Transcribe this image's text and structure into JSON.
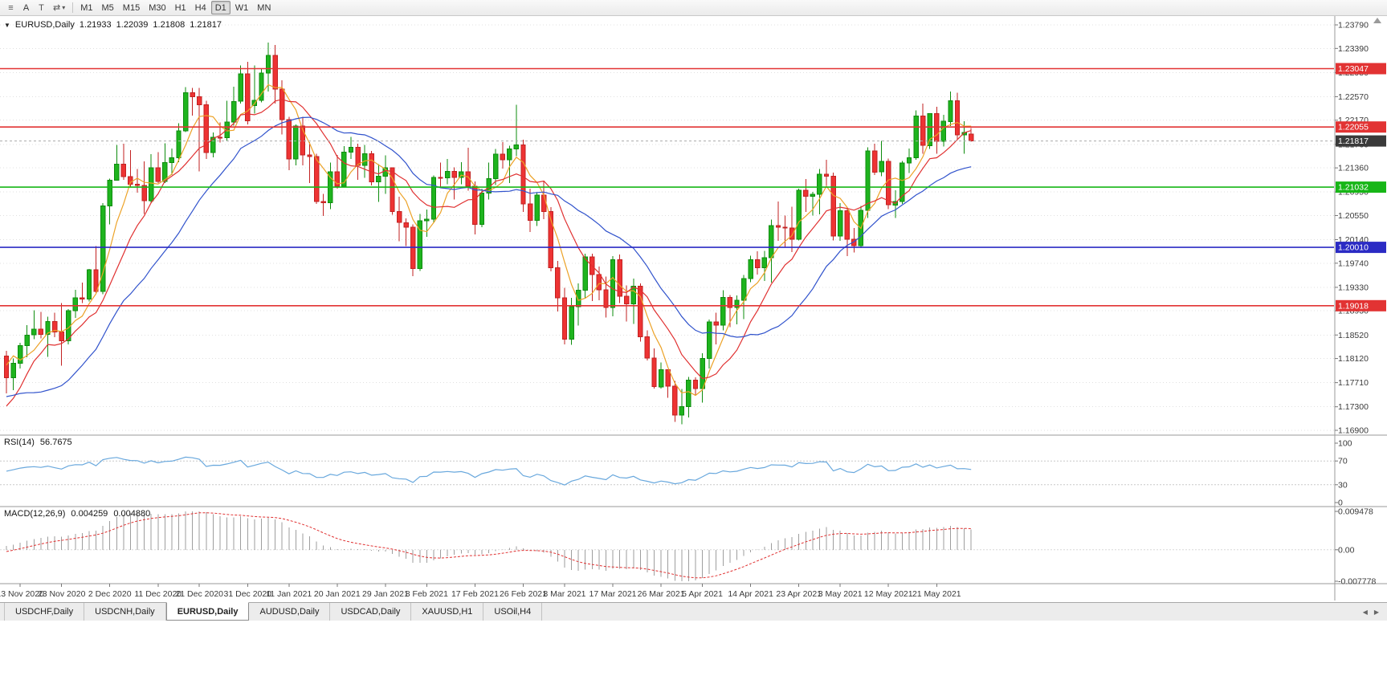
{
  "toolbar": {
    "icons": {
      "menu": "≡",
      "text_tool": "T",
      "draw_tool": "⇄",
      "caret": "▾"
    },
    "cursor_button_label": "A",
    "timeframes": [
      {
        "label": "M1",
        "active": false
      },
      {
        "label": "M5",
        "active": false
      },
      {
        "label": "M15",
        "active": false
      },
      {
        "label": "M30",
        "active": false
      },
      {
        "label": "H1",
        "active": false
      },
      {
        "label": "H4",
        "active": false
      },
      {
        "label": "D1",
        "active": true
      },
      {
        "label": "W1",
        "active": false
      },
      {
        "label": "MN",
        "active": false
      }
    ]
  },
  "chart_header": {
    "collapse_icon": "▼",
    "symbol": "EURUSD,Daily",
    "open": "1.21933",
    "high": "1.22039",
    "low": "1.21808",
    "close": "1.21817"
  },
  "tabbar": {
    "scroll_left_icon": "◀",
    "scroll_right_icon": "▶",
    "tabs": [
      {
        "label": "USDCHF,Daily",
        "active": false
      },
      {
        "label": "USDCNH,Daily",
        "active": false
      },
      {
        "label": "EURUSD,Daily",
        "active": true
      },
      {
        "label": "AUDUSD,Daily",
        "active": false
      },
      {
        "label": "USDCAD,Daily",
        "active": false
      },
      {
        "label": "XAUUSD,H1",
        "active": false
      },
      {
        "label": "USOil,H4",
        "active": false
      }
    ]
  },
  "chart_data": {
    "type": "candlestick",
    "symbol": "EURUSD",
    "timeframe": "Daily",
    "candle_colors": {
      "bull": "#1eb41e",
      "bull_border": "#0e8c0e",
      "bear": "#ee3333",
      "bear_border": "#c22222"
    },
    "grid_color": "#e0e0e0",
    "y_axis": {
      "top_value": 1.2379,
      "bottom_value": 1.169,
      "ticks": [
        "1.23790",
        "1.23390",
        "1.22980",
        "1.22570",
        "1.22170",
        "1.21760",
        "1.21360",
        "1.20950",
        "1.20550",
        "1.20140",
        "1.19740",
        "1.19330",
        "1.18930",
        "1.18520",
        "1.18120",
        "1.17710",
        "1.17300",
        "1.16900"
      ]
    },
    "hlines": [
      {
        "value": 1.23047,
        "label": "1.23047",
        "color": "#e23333"
      },
      {
        "value": 1.22055,
        "label": "1.22055",
        "color": "#e23333"
      },
      {
        "value": 1.21032,
        "label": "1.21032",
        "color": "#17b617"
      },
      {
        "value": 1.2001,
        "label": "1.20010",
        "color": "#2b2bc4"
      },
      {
        "value": 1.19018,
        "label": "1.19018",
        "color": "#e23333"
      }
    ],
    "current_price": {
      "value": 1.21817,
      "label": "1.21817",
      "color": "#3a3a3a"
    },
    "moving_averages": [
      {
        "period": 5,
        "color": "#eca227"
      },
      {
        "period": 10,
        "color": "#e03030"
      },
      {
        "period": 21,
        "color": "#3153cc"
      }
    ],
    "rsi": {
      "name": "RSI(14)",
      "value": "56.7675",
      "period": 14,
      "color": "#69a8dd",
      "levels": [
        {
          "v": 100,
          "label": "100"
        },
        {
          "v": 70,
          "label": "70"
        },
        {
          "v": 30,
          "label": "30"
        },
        {
          "v": 0,
          "label": "0"
        }
      ]
    },
    "macd": {
      "name": "MACD(12,26,9)",
      "main_value": "0.004259",
      "signal_value": "0.004880",
      "fast": 12,
      "slow": 26,
      "signal": 9,
      "hist_color": "#9e9e9e",
      "signal_color": "#e03030",
      "scale": {
        "max": 0.009478,
        "max_label": "0.009478",
        "zero_label": "0.00",
        "min": -0.007778,
        "min_label": "-0.007778"
      }
    },
    "x_labels": [
      {
        "label": "13 Nov 2020",
        "i": 2
      },
      {
        "label": "23 Nov 2020",
        "i": 8
      },
      {
        "label": "2 Dec 2020",
        "i": 15
      },
      {
        "label": "11 Dec 2020",
        "i": 22
      },
      {
        "label": "21 Dec 2020",
        "i": 28
      },
      {
        "label": "31 Dec 2020",
        "i": 35
      },
      {
        "label": "11 Jan 2021",
        "i": 41
      },
      {
        "label": "20 Jan 2021",
        "i": 48
      },
      {
        "label": "29 Jan 2021",
        "i": 55
      },
      {
        "label": "8 Feb 2021",
        "i": 61
      },
      {
        "label": "17 Feb 2021",
        "i": 68
      },
      {
        "label": "26 Feb 2021",
        "i": 75
      },
      {
        "label": "8 Mar 2021",
        "i": 81
      },
      {
        "label": "17 Mar 2021",
        "i": 88
      },
      {
        "label": "26 Mar 2021",
        "i": 95
      },
      {
        "label": "5 Apr 2021",
        "i": 101
      },
      {
        "label": "14 Apr 2021",
        "i": 108
      },
      {
        "label": "23 Apr 2021",
        "i": 115
      },
      {
        "label": "3 May 2021",
        "i": 121
      },
      {
        "label": "12 May 2021",
        "i": 128
      },
      {
        "label": "21 May 2021",
        "i": 135
      }
    ],
    "warmup_closes": [
      1.1788,
      1.1755,
      1.1737,
      1.1716,
      1.1686,
      1.1663,
      1.1631,
      1.1663,
      1.1672,
      1.172,
      1.174,
      1.1717,
      1.1745,
      1.176,
      1.1785,
      1.181,
      1.1771,
      1.1747,
      1.1722,
      1.1714,
      1.174,
      1.1756,
      1.1771,
      1.1824,
      1.186,
      1.183,
      1.181,
      1.1787,
      1.1752,
      1.1698,
      1.1648,
      1.1645,
      1.1672,
      1.1649,
      1.1622,
      1.1646,
      1.1719,
      1.1725,
      1.187,
      1.1813,
      1.1817
    ],
    "ohlc": [
      [
        1.1816,
        1.1825,
        1.1753,
        1.1779
      ],
      [
        1.1779,
        1.1812,
        1.1758,
        1.1804
      ],
      [
        1.1804,
        1.1839,
        1.1795,
        1.1834
      ],
      [
        1.1834,
        1.1869,
        1.1814,
        1.1852
      ],
      [
        1.1852,
        1.1894,
        1.1845,
        1.1862
      ],
      [
        1.1862,
        1.1891,
        1.1846,
        1.1853
      ],
      [
        1.1853,
        1.1883,
        1.1815,
        1.1875
      ],
      [
        1.1875,
        1.189,
        1.1848,
        1.1857
      ],
      [
        1.1857,
        1.1906,
        1.18,
        1.1842
      ],
      [
        1.1842,
        1.1896,
        1.1836,
        1.1893
      ],
      [
        1.1893,
        1.1929,
        1.1881,
        1.1915
      ],
      [
        1.1915,
        1.1941,
        1.1906,
        1.1913
      ],
      [
        1.1913,
        1.1964,
        1.1909,
        1.1963
      ],
      [
        1.1963,
        1.2003,
        1.1923,
        1.1926
      ],
      [
        1.1926,
        1.2076,
        1.1921,
        1.2071
      ],
      [
        1.2071,
        1.2118,
        1.204,
        1.2115
      ],
      [
        1.2115,
        1.2175,
        1.2114,
        1.2142
      ],
      [
        1.2142,
        1.2177,
        1.2116,
        1.2121
      ],
      [
        1.2121,
        1.2166,
        1.2104,
        1.2108
      ],
      [
        1.2108,
        1.2134,
        1.2094,
        1.2106
      ],
      [
        1.2106,
        1.2147,
        1.2058,
        1.208
      ],
      [
        1.208,
        1.2159,
        1.2076,
        1.2136
      ],
      [
        1.2136,
        1.2163,
        1.211,
        1.2113
      ],
      [
        1.2113,
        1.2178,
        1.211,
        1.2145
      ],
      [
        1.2145,
        1.2169,
        1.2124,
        1.2153
      ],
      [
        1.2153,
        1.2212,
        1.2146,
        1.2199
      ],
      [
        1.2199,
        1.2273,
        1.2197,
        1.2264
      ],
      [
        1.2264,
        1.2272,
        1.2225,
        1.2257
      ],
      [
        1.2257,
        1.2272,
        1.213,
        1.2243
      ],
      [
        1.2243,
        1.225,
        1.2151,
        1.2162
      ],
      [
        1.2162,
        1.2196,
        1.2154,
        1.2188
      ],
      [
        1.2188,
        1.2213,
        1.2179,
        1.2187
      ],
      [
        1.2187,
        1.225,
        1.2181,
        1.2214
      ],
      [
        1.2214,
        1.2274,
        1.2208,
        1.2249
      ],
      [
        1.2249,
        1.231,
        1.2245,
        1.2296
      ],
      [
        1.2296,
        1.2316,
        1.221,
        1.2216
      ],
      [
        1.2242,
        1.231,
        1.2228,
        1.2251
      ],
      [
        1.2251,
        1.2304,
        1.2247,
        1.2297
      ],
      [
        1.2297,
        1.2349,
        1.2266,
        1.2327
      ],
      [
        1.2327,
        1.2345,
        1.2245,
        1.227
      ],
      [
        1.227,
        1.2285,
        1.2193,
        1.2218
      ],
      [
        1.2218,
        1.2223,
        1.2132,
        1.2151
      ],
      [
        1.2151,
        1.221,
        1.214,
        1.2207
      ],
      [
        1.2207,
        1.2223,
        1.214,
        1.2158
      ],
      [
        1.2158,
        1.218,
        1.211,
        1.2155
      ],
      [
        1.2155,
        1.216,
        1.2075,
        1.2079
      ],
      [
        1.2079,
        1.2092,
        1.2054,
        1.2077
      ],
      [
        1.2077,
        1.2145,
        1.2066,
        1.2129
      ],
      [
        1.2129,
        1.2158,
        1.2101,
        1.2105
      ],
      [
        1.2105,
        1.2173,
        1.2103,
        1.2163
      ],
      [
        1.2163,
        1.2189,
        1.2151,
        1.2171
      ],
      [
        1.2171,
        1.2177,
        1.2116,
        1.214
      ],
      [
        1.214,
        1.2175,
        1.2119,
        1.216
      ],
      [
        1.216,
        1.2165,
        1.2106,
        1.2112
      ],
      [
        1.2112,
        1.2142,
        1.2078,
        1.2122
      ],
      [
        1.2122,
        1.2157,
        1.2092,
        1.2136
      ],
      [
        1.2136,
        1.2137,
        1.2056,
        1.2062
      ],
      [
        1.2062,
        1.2087,
        1.2011,
        1.2043
      ],
      [
        1.2043,
        1.205,
        1.2003,
        1.2035
      ],
      [
        1.2035,
        1.204,
        1.1952,
        1.1965
      ],
      [
        1.1965,
        1.2058,
        1.1961,
        1.2046
      ],
      [
        1.2046,
        1.2065,
        1.2019,
        1.2049
      ],
      [
        1.2049,
        1.2123,
        1.2042,
        1.212
      ],
      [
        1.212,
        1.2145,
        1.2103,
        1.2119
      ],
      [
        1.2119,
        1.2151,
        1.2108,
        1.213
      ],
      [
        1.213,
        1.2137,
        1.2082,
        1.212
      ],
      [
        1.212,
        1.2146,
        1.2108,
        1.2129
      ],
      [
        1.2129,
        1.217,
        1.2097,
        1.2105
      ],
      [
        1.2105,
        1.2113,
        1.2023,
        1.204
      ],
      [
        1.204,
        1.2101,
        1.2035,
        1.2093
      ],
      [
        1.2093,
        1.2145,
        1.2082,
        1.2118
      ],
      [
        1.2118,
        1.2168,
        1.2107,
        1.2159
      ],
      [
        1.2159,
        1.218,
        1.2135,
        1.215
      ],
      [
        1.215,
        1.2174,
        1.211,
        1.2168
      ],
      [
        1.2168,
        1.2243,
        1.2156,
        1.2175
      ],
      [
        1.2175,
        1.2184,
        1.2061,
        1.2075
      ],
      [
        1.2075,
        1.2101,
        1.2027,
        1.2047
      ],
      [
        1.2047,
        1.2094,
        1.2037,
        1.209
      ],
      [
        1.209,
        1.2113,
        1.2049,
        1.2062
      ],
      [
        1.2062,
        1.2069,
        1.196,
        1.1966
      ],
      [
        1.1966,
        1.1978,
        1.1892,
        1.1915
      ],
      [
        1.1915,
        1.1932,
        1.1836,
        1.1845
      ],
      [
        1.1845,
        1.1915,
        1.1835,
        1.19
      ],
      [
        1.19,
        1.194,
        1.1868,
        1.1928
      ],
      [
        1.1928,
        1.199,
        1.1915,
        1.1985
      ],
      [
        1.1985,
        1.199,
        1.191,
        1.1955
      ],
      [
        1.1955,
        1.1968,
        1.1911,
        1.1929
      ],
      [
        1.1929,
        1.1951,
        1.1882,
        1.1899
      ],
      [
        1.1899,
        1.1986,
        1.1884,
        1.198
      ],
      [
        1.198,
        1.1989,
        1.1906,
        1.1918
      ],
      [
        1.1918,
        1.1936,
        1.1875,
        1.1905
      ],
      [
        1.1905,
        1.1948,
        1.1871,
        1.1935
      ],
      [
        1.1935,
        1.194,
        1.1841,
        1.1849
      ],
      [
        1.1849,
        1.186,
        1.1809,
        1.1813
      ],
      [
        1.1813,
        1.1829,
        1.1761,
        1.1764
      ],
      [
        1.1764,
        1.1805,
        1.1761,
        1.1793
      ],
      [
        1.1793,
        1.1794,
        1.1745,
        1.1765
      ],
      [
        1.1765,
        1.1774,
        1.1704,
        1.1716
      ],
      [
        1.1716,
        1.176,
        1.17,
        1.173
      ],
      [
        1.173,
        1.1781,
        1.1712,
        1.1775
      ],
      [
        1.1775,
        1.178,
        1.1749,
        1.1761
      ],
      [
        1.1761,
        1.1821,
        1.1737,
        1.1812
      ],
      [
        1.1812,
        1.1878,
        1.1795,
        1.1874
      ],
      [
        1.1874,
        1.189,
        1.1836,
        1.1869
      ],
      [
        1.1869,
        1.1928,
        1.186,
        1.1916
      ],
      [
        1.1916,
        1.192,
        1.1865,
        1.1899
      ],
      [
        1.1899,
        1.1919,
        1.187,
        1.1911
      ],
      [
        1.1911,
        1.1954,
        1.1879,
        1.1948
      ],
      [
        1.1948,
        1.1987,
        1.1942,
        1.198
      ],
      [
        1.198,
        1.1994,
        1.1955,
        1.1966
      ],
      [
        1.1966,
        1.1995,
        1.1944,
        1.1983
      ],
      [
        1.1983,
        1.2048,
        1.1941,
        1.2038
      ],
      [
        1.2038,
        1.2079,
        1.2012,
        1.2035
      ],
      [
        1.2035,
        1.2055,
        1.2001,
        1.2034
      ],
      [
        1.2034,
        1.207,
        1.1993,
        1.2015
      ],
      [
        1.2015,
        1.2101,
        1.2013,
        1.2098
      ],
      [
        1.2098,
        1.2117,
        1.2061,
        1.2088
      ],
      [
        1.2088,
        1.2095,
        1.2055,
        1.2091
      ],
      [
        1.2091,
        1.2134,
        1.2057,
        1.2125
      ],
      [
        1.2125,
        1.215,
        1.2103,
        1.2122
      ],
      [
        1.2122,
        1.2128,
        1.2013,
        1.202
      ],
      [
        1.202,
        1.2076,
        1.2012,
        1.2063
      ],
      [
        1.2063,
        1.2067,
        1.1986,
        1.2015
      ],
      [
        1.2015,
        1.2034,
        1.1992,
        1.2004
      ],
      [
        1.2004,
        1.2071,
        1.2,
        1.2064
      ],
      [
        1.2064,
        1.2171,
        1.2051,
        1.2165
      ],
      [
        1.2165,
        1.2177,
        1.2124,
        1.2129
      ],
      [
        1.2129,
        1.2182,
        1.2122,
        1.2147
      ],
      [
        1.2147,
        1.2152,
        1.2066,
        1.2073
      ],
      [
        1.2073,
        1.2098,
        1.2051,
        1.2079
      ],
      [
        1.2079,
        1.2148,
        1.2075,
        1.2144
      ],
      [
        1.2144,
        1.2169,
        1.2127,
        1.2153
      ],
      [
        1.2153,
        1.2234,
        1.215,
        1.2224
      ],
      [
        1.2224,
        1.2245,
        1.216,
        1.2174
      ],
      [
        1.2174,
        1.2229,
        1.2168,
        1.2228
      ],
      [
        1.2228,
        1.224,
        1.216,
        1.2181
      ],
      [
        1.2181,
        1.2226,
        1.2172,
        1.2215
      ],
      [
        1.2215,
        1.2266,
        1.2207,
        1.225
      ],
      [
        1.225,
        1.2264,
        1.2185,
        1.2192
      ],
      [
        1.2192,
        1.2215,
        1.216,
        1.2196
      ],
      [
        1.21933,
        1.22039,
        1.21808,
        1.21817
      ]
    ]
  }
}
